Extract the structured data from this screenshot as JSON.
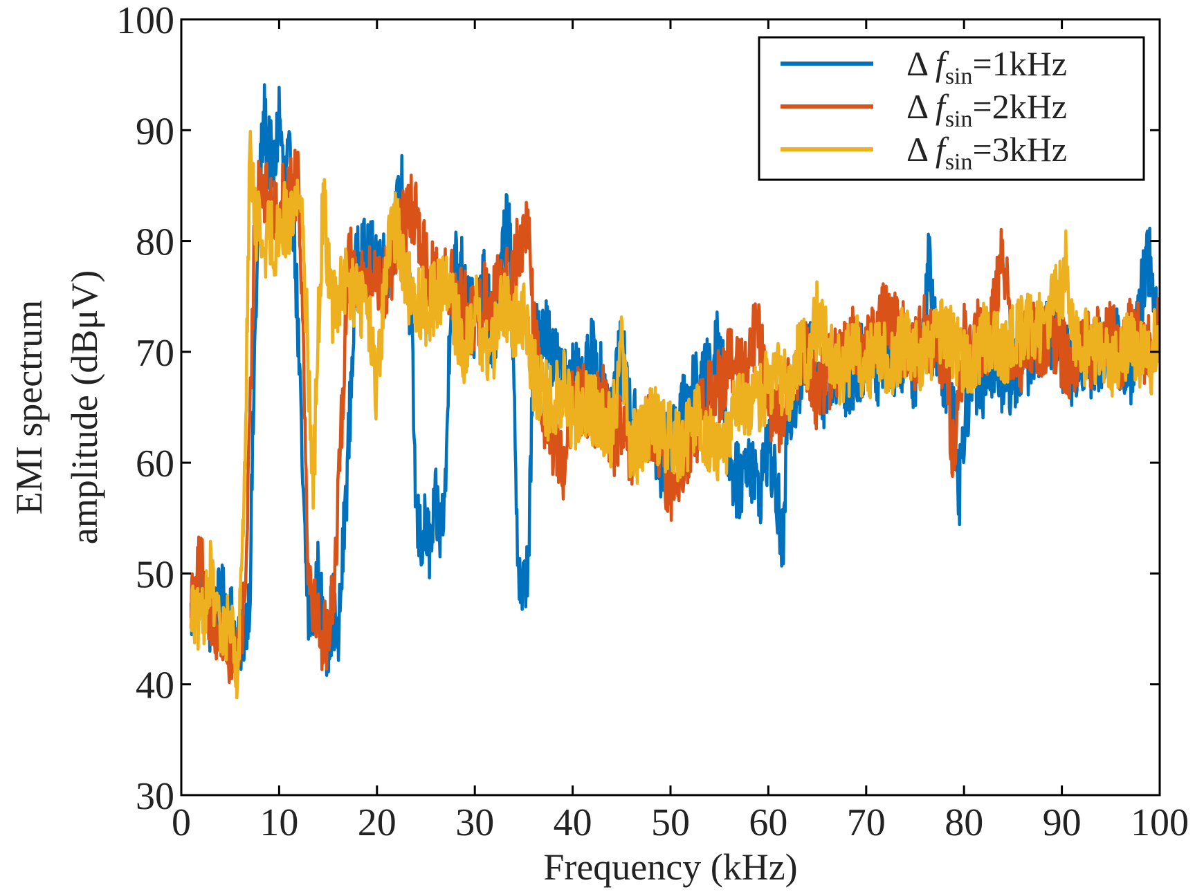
{
  "chart_data": {
    "type": "line",
    "title": "",
    "xlabel": "Frequency (kHz)",
    "ylabel_line1": "EMI spectrum",
    "ylabel_line2": "amplitude  (dBμV)",
    "xlim": [
      0,
      100
    ],
    "ylim": [
      30,
      100
    ],
    "xticks": [
      0,
      10,
      20,
      30,
      40,
      50,
      60,
      70,
      80,
      90,
      100
    ],
    "yticks": [
      30,
      40,
      50,
      60,
      70,
      80,
      90,
      100
    ],
    "grid": false,
    "legend_position": "top-right",
    "series": [
      {
        "name": "Δ f_sin=1kHz",
        "legend_prefix": "Δ",
        "legend_f": "f",
        "legend_sub": "sin",
        "legend_suffix": "=1kHz",
        "color": "#0072BD",
        "x": [
          1,
          2,
          3,
          4,
          5,
          5.8,
          6.5,
          7,
          7.5,
          8,
          8.5,
          9,
          9.5,
          10,
          10.5,
          11,
          11.5,
          12,
          12.5,
          13,
          13.5,
          14,
          14.5,
          15,
          15.5,
          16,
          17,
          18,
          19,
          20,
          21,
          22,
          22.5,
          23,
          23.5,
          24,
          24.5,
          25,
          25.5,
          26,
          26.5,
          27,
          27.5,
          28,
          29,
          30,
          31,
          32,
          33,
          33.5,
          34,
          34.5,
          35,
          35.5,
          36,
          37,
          38,
          39,
          40,
          41,
          42,
          43,
          44,
          45,
          46,
          47,
          48,
          49,
          50,
          51,
          52,
          53,
          54,
          55,
          56,
          57,
          58,
          59,
          60,
          61,
          61.5,
          62,
          63,
          64,
          65,
          66,
          67,
          68,
          69,
          70,
          71,
          72,
          73,
          74,
          75,
          76,
          76.5,
          77,
          78,
          79,
          79.5,
          80,
          81,
          82,
          83,
          84,
          85,
          86,
          87,
          88,
          89,
          90,
          91,
          92,
          93,
          94,
          95,
          96,
          97,
          98,
          99,
          99.5,
          100
        ],
        "y": [
          46,
          50,
          45,
          48,
          47,
          43,
          45,
          48,
          70,
          85,
          91,
          88,
          86,
          92,
          85,
          87,
          82,
          70,
          55,
          46,
          47,
          50,
          45,
          44,
          47,
          43,
          60,
          80,
          78,
          79,
          77,
          82,
          85,
          77,
          73,
          55,
          53,
          54,
          52,
          56,
          54,
          57,
          75,
          78,
          77,
          72,
          76,
          70,
          80,
          84,
          65,
          50,
          48,
          52,
          70,
          73,
          70,
          67,
          68,
          66,
          70,
          67,
          65,
          70,
          64,
          62,
          63,
          60,
          62,
          64,
          66,
          67,
          68,
          72,
          60,
          58,
          61,
          57,
          62,
          56,
          52,
          64,
          67,
          70,
          68,
          66,
          69,
          67,
          68,
          70,
          68,
          71,
          69,
          70,
          68,
          72,
          80,
          72,
          68,
          66,
          57,
          64,
          68,
          66,
          70,
          67,
          68,
          69,
          70,
          71,
          72,
          70,
          68,
          70,
          69,
          70,
          71,
          70,
          68,
          75,
          79,
          72,
          74
        ]
      },
      {
        "name": "Δ f_sin=2kHz",
        "legend_prefix": "Δ",
        "legend_f": "f",
        "legend_sub": "sin",
        "legend_suffix": "=2kHz",
        "color": "#D95319",
        "x": [
          1,
          2,
          3,
          4,
          5,
          5.8,
          6.5,
          7,
          7.5,
          8,
          8.5,
          9,
          9.5,
          10,
          10.5,
          11,
          11.5,
          12,
          12.5,
          13,
          13.5,
          14,
          14.5,
          15,
          15.5,
          16,
          17,
          18,
          19,
          20,
          21,
          22,
          23,
          24,
          24.5,
          25,
          26,
          27,
          28,
          29,
          30,
          31,
          32,
          33,
          34,
          35,
          35.5,
          36,
          36.5,
          37,
          38,
          39,
          40,
          41,
          42,
          43,
          44,
          45,
          46,
          47,
          48,
          49,
          50,
          51,
          52,
          53,
          54,
          55,
          56,
          57,
          58,
          59,
          60,
          61,
          62,
          63,
          64,
          65,
          66,
          67,
          68,
          69,
          70,
          71,
          72,
          73,
          74,
          75,
          76,
          77,
          78,
          79,
          80,
          81,
          82,
          83,
          84,
          85,
          86,
          87,
          88,
          89,
          90,
          91,
          92,
          93,
          94,
          95,
          96,
          97,
          98,
          99,
          100
        ],
        "y": [
          48,
          51,
          46,
          44,
          43,
          42,
          48,
          62,
          82,
          86,
          84,
          83,
          82,
          83,
          84,
          84,
          85,
          86,
          70,
          50,
          48,
          46,
          44,
          45,
          48,
          55,
          78,
          77,
          76,
          77,
          76,
          80,
          82,
          83,
          80,
          78,
          76,
          77,
          75,
          74,
          72,
          75,
          75,
          76,
          78,
          80,
          82,
          72,
          68,
          64,
          62,
          60,
          65,
          66,
          64,
          66,
          62,
          63,
          60,
          62,
          63,
          61,
          57,
          60,
          62,
          64,
          66,
          67,
          69,
          68,
          70,
          72,
          65,
          64,
          66,
          68,
          70,
          66,
          68,
          69,
          70,
          71,
          70,
          72,
          73,
          72,
          71,
          70,
          72,
          71,
          70,
          60,
          71,
          72,
          70,
          73,
          80,
          68,
          70,
          71,
          70,
          72,
          70,
          69,
          71,
          70,
          72,
          71,
          70,
          72,
          71,
          70,
          73
        ]
      },
      {
        "name": "Δ f_sin=3kHz",
        "legend_prefix": "Δ",
        "legend_f": "f",
        "legend_sub": "sin",
        "legend_suffix": "=3kHz",
        "color": "#EDB120",
        "x": [
          1,
          2,
          3,
          4,
          5,
          5.8,
          6.5,
          7,
          7.5,
          8,
          8.5,
          9,
          9.5,
          10,
          10.5,
          11,
          11.5,
          12,
          12.5,
          13,
          13.5,
          14,
          14.5,
          15,
          15.5,
          16,
          17,
          18,
          19,
          20,
          21,
          22,
          23,
          24,
          25,
          26,
          27,
          28,
          29,
          30,
          31,
          32,
          33,
          34,
          35,
          36,
          37,
          38,
          39,
          40,
          41,
          42,
          43,
          44,
          45,
          46,
          47,
          48,
          49,
          50,
          51,
          52,
          53,
          54,
          55,
          56,
          57,
          58,
          59,
          60,
          61,
          62,
          63,
          64,
          65,
          66,
          67,
          68,
          69,
          70,
          71,
          72,
          73,
          74,
          75,
          76,
          77,
          78,
          79,
          80,
          81,
          82,
          83,
          84,
          85,
          86,
          87,
          88,
          89,
          90,
          90.5,
          91,
          92,
          93,
          94,
          95,
          96,
          97,
          98,
          99,
          100
        ],
        "y": [
          47,
          45,
          50,
          44,
          46,
          41,
          60,
          88,
          82,
          81,
          80,
          81,
          80,
          81,
          82,
          81,
          83,
          85,
          80,
          68,
          58,
          72,
          84,
          78,
          74,
          75,
          76,
          75,
          74,
          66,
          78,
          82,
          76,
          75,
          74,
          75,
          76,
          73,
          70,
          74,
          70,
          71,
          75,
          72,
          74,
          68,
          66,
          65,
          67,
          64,
          66,
          65,
          64,
          63,
          70,
          61,
          62,
          64,
          63,
          62,
          61,
          63,
          64,
          62,
          60,
          63,
          65,
          64,
          66,
          67,
          68,
          67,
          69,
          70,
          73,
          71,
          68,
          69,
          70,
          68,
          71,
          69,
          70,
          71,
          70,
          69,
          71,
          72,
          70,
          69,
          70,
          71,
          72,
          70,
          71,
          72,
          73,
          72,
          74,
          76,
          78,
          72,
          70,
          71,
          70,
          69,
          70,
          71,
          70,
          69,
          72
        ]
      }
    ]
  }
}
